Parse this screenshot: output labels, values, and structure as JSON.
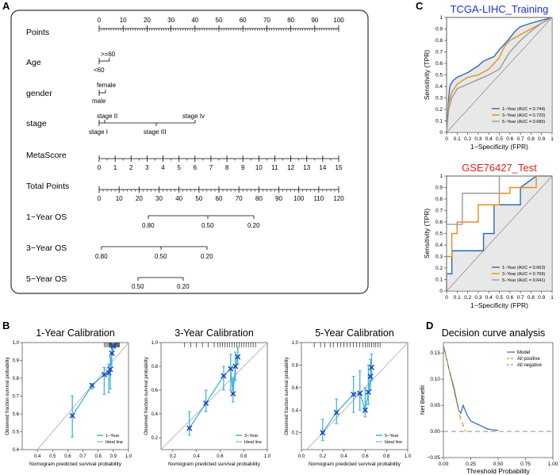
{
  "panels": {
    "A": "A",
    "B": "B",
    "C": "C",
    "D": "D"
  },
  "colors": {
    "blue": "#2a6ab8",
    "orange": "#e0901e",
    "gray": "#9a9a9a",
    "cyan": "#3fb2d8",
    "cross": "#1f3fbf",
    "title_blue": "#1a2ee0",
    "title_red": "#e02020"
  },
  "nomogram": {
    "points": {
      "label": "Points",
      "ticks": [
        "0",
        "10",
        "20",
        "30",
        "40",
        "50",
        "60",
        "70",
        "80",
        "90",
        "100"
      ]
    },
    "age": {
      "label": "Age",
      "upper": ">=60",
      "lower": "<60"
    },
    "gender": {
      "label": "gender",
      "upper": "female",
      "lower": "male"
    },
    "stage": {
      "label": "stage",
      "stage_ii": "stage II",
      "stage_iv": "stage Iv",
      "stage_i": "stage I",
      "stage_iii": "stage III"
    },
    "metascore": {
      "label": "MetaScore",
      "ticks": [
        "0",
        "1",
        "2",
        "3",
        "4",
        "5",
        "6",
        "7",
        "8",
        "9",
        "10",
        "11",
        "12",
        "13",
        "14",
        "15"
      ]
    },
    "total_points": {
      "label": "Total Points",
      "ticks": [
        "0",
        "10",
        "20",
        "30",
        "40",
        "50",
        "60",
        "70",
        "80",
        "90",
        "100",
        "110",
        "120"
      ]
    },
    "os1": {
      "label": "1−Year OS",
      "ticks": [
        "0.80",
        "0.50",
        "0.20"
      ]
    },
    "os3": {
      "label": "3−Year OS",
      "ticks": [
        "0.80",
        "0.50",
        "0.20"
      ]
    },
    "os5": {
      "label": "5−Year OS",
      "ticks": [
        "0.50",
        "0.20"
      ]
    }
  },
  "chart_data": [
    {
      "id": "roc_training",
      "type": "line",
      "title": "TCGA-LIHC_Training",
      "xlabel": "1−Specificity (FPR)",
      "ylabel": "Sensitivity (TPR)",
      "xlim": [
        0,
        1
      ],
      "ylim": [
        0,
        1
      ],
      "ticks": [
        "0",
        "0.1",
        "0.2",
        "0.3",
        "0.4",
        "0.5",
        "0.6",
        "0.7",
        "0.8",
        "0.9",
        "1"
      ],
      "tick_values": [
        0,
        0.1,
        0.2,
        0.3,
        0.4,
        0.5,
        0.6,
        0.7,
        0.8,
        0.9,
        1
      ],
      "series": [
        {
          "name": "1−Year (AUC = 0.744)",
          "color": "#2a6ab8",
          "x": [
            0,
            0.02,
            0.03,
            0.06,
            0.1,
            0.15,
            0.2,
            0.25,
            0.3,
            0.35,
            0.45,
            0.5,
            0.58,
            0.65,
            0.7,
            0.8,
            0.88,
            1
          ],
          "y": [
            0,
            0.3,
            0.4,
            0.45,
            0.48,
            0.5,
            0.52,
            0.55,
            0.58,
            0.62,
            0.66,
            0.72,
            0.8,
            0.88,
            0.92,
            0.95,
            0.97,
            1
          ]
        },
        {
          "name": "3−Year (AUC = 0.720)",
          "color": "#e0901e",
          "x": [
            0,
            0.02,
            0.05,
            0.1,
            0.2,
            0.3,
            0.4,
            0.5,
            0.55,
            0.6,
            0.7,
            0.8,
            0.9,
            1
          ],
          "y": [
            0,
            0.25,
            0.35,
            0.42,
            0.48,
            0.5,
            0.55,
            0.65,
            0.75,
            0.8,
            0.85,
            0.9,
            0.95,
            1
          ]
        },
        {
          "name": "5−Year (AUC = 0.680)",
          "color": "#9a9a9a",
          "x": [
            0,
            0.02,
            0.05,
            0.1,
            0.2,
            0.3,
            0.4,
            0.5,
            0.6,
            0.7,
            0.8,
            0.9,
            1
          ],
          "y": [
            0,
            0.2,
            0.3,
            0.38,
            0.42,
            0.46,
            0.5,
            0.55,
            0.7,
            0.8,
            0.88,
            0.95,
            1
          ]
        }
      ]
    },
    {
      "id": "roc_test",
      "type": "line",
      "title": "GSE76427_Test",
      "xlabel": "1−Specificity (FPR)",
      "ylabel": "Sensitivity (TPR)",
      "xlim": [
        0,
        1
      ],
      "ylim": [
        0,
        1
      ],
      "ticks": [
        "0",
        "0.1",
        "0.2",
        "0.3",
        "0.4",
        "0.5",
        "0.6",
        "0.7",
        "0.8",
        "0.9",
        "1"
      ],
      "tick_values": [
        0,
        0.1,
        0.2,
        0.3,
        0.4,
        0.5,
        0.6,
        0.7,
        0.8,
        0.9,
        1
      ],
      "series": [
        {
          "name": "1−Year (AUC = 0.663)",
          "color": "#2a6ab8",
          "x": [
            0,
            0,
            0.05,
            0.05,
            0.35,
            0.35,
            0.45,
            0.45,
            0.7,
            0.7,
            0.85,
            1
          ],
          "y": [
            0,
            0.15,
            0.15,
            0.35,
            0.35,
            0.5,
            0.5,
            0.75,
            0.75,
            0.9,
            1,
            1
          ]
        },
        {
          "name": "3−Year (AUC = 0.769)",
          "color": "#e0901e",
          "x": [
            0,
            0,
            0.05,
            0.05,
            0.1,
            0.1,
            0.3,
            0.3,
            0.5,
            0.5,
            0.6,
            0.6,
            0.85,
            0.85,
            1
          ],
          "y": [
            0,
            0.3,
            0.3,
            0.5,
            0.5,
            0.6,
            0.6,
            0.75,
            0.75,
            0.85,
            0.85,
            0.9,
            0.9,
            1,
            1
          ]
        },
        {
          "name": "5−Year (AUC = 0.641)",
          "color": "#9a9a9a",
          "x": [
            0,
            0,
            0.15,
            0.15,
            0.35,
            0.35,
            0.5,
            0.5,
            0.85,
            0.85,
            1
          ],
          "y": [
            0,
            0.58,
            0.58,
            0.85,
            0.85,
            0.85,
            0.85,
            1,
            1,
            1,
            1
          ]
        }
      ]
    },
    {
      "id": "cal_1y",
      "type": "line",
      "title": "1-Year Calibration",
      "xlabel": "Nomogram predicted survival probability",
      "ylabel": "Observed fraction survival probability",
      "xlim": [
        0.3,
        1.0
      ],
      "ylim": [
        0.4,
        1.0
      ],
      "xticks": [
        0.4,
        0.5,
        0.6,
        0.7,
        0.8,
        0.9,
        1.0
      ],
      "xtick_labels": [
        "0.4",
        "0.5",
        "0.6",
        "0.7",
        "0.8",
        "0.9",
        "1.0"
      ],
      "yticks": [
        0.4,
        0.5,
        0.6,
        0.7,
        0.8,
        0.9,
        1.0
      ],
      "ytick_labels": [
        "0.4",
        "0.5",
        "0.6",
        "0.7",
        "0.8",
        "0.9",
        "1.0"
      ],
      "legend": [
        "1−Year",
        "Ideal line"
      ],
      "x": [
        0.63,
        0.76,
        0.84,
        0.87,
        0.88,
        0.89,
        0.9
      ],
      "y": [
        0.59,
        0.76,
        0.82,
        0.83,
        0.85,
        0.94,
        0.98
      ],
      "err_low": [
        0.47,
        0.74,
        0.71,
        0.72,
        0.74,
        0.86,
        0.93
      ],
      "err_high": [
        0.7,
        0.77,
        0.86,
        0.88,
        0.92,
        0.97,
        1.0
      ],
      "rug": [
        0.84,
        0.85,
        0.86,
        0.87,
        0.875,
        0.88,
        0.885,
        0.89,
        0.895,
        0.9,
        0.905,
        0.91,
        0.915,
        0.92,
        0.925,
        0.93,
        0.935,
        0.94
      ]
    },
    {
      "id": "cal_3y",
      "type": "line",
      "title": "3-Year Calibration",
      "xlabel": "Nomogram predicted survival probability",
      "ylabel": "Observed fraction survival probability",
      "xlim": [
        0.1,
        1.0
      ],
      "ylim": [
        0.1,
        1.0
      ],
      "xticks": [
        0.2,
        0.4,
        0.6,
        0.8,
        1.0
      ],
      "xtick_labels": [
        "0.2",
        "0.4",
        "0.6",
        "0.8",
        "1.0"
      ],
      "yticks": [
        0.2,
        0.4,
        0.6,
        0.8,
        1.0
      ],
      "ytick_labels": [
        "0.2",
        "0.4",
        "0.6",
        "0.8",
        "1.0"
      ],
      "legend": [
        "3−Year",
        "Ideal line"
      ],
      "x": [
        0.34,
        0.48,
        0.63,
        0.69,
        0.71,
        0.73,
        0.75
      ],
      "y": [
        0.28,
        0.49,
        0.72,
        0.78,
        0.57,
        0.8,
        0.88
      ],
      "err_low": [
        0.22,
        0.42,
        0.6,
        0.6,
        0.5,
        0.68,
        0.82
      ],
      "err_high": [
        0.42,
        0.6,
        0.8,
        0.9,
        0.7,
        0.92,
        0.96
      ],
      "rug": [
        0.3,
        0.35,
        0.4,
        0.45,
        0.5,
        0.55,
        0.58,
        0.6,
        0.62,
        0.64,
        0.66,
        0.68,
        0.7,
        0.72,
        0.74,
        0.76,
        0.78,
        0.8,
        0.82,
        0.84,
        0.86,
        0.88,
        0.9
      ]
    },
    {
      "id": "cal_5y",
      "type": "line",
      "title": "5-Year Calibration",
      "xlabel": "Nomogram predicted survival probability",
      "ylabel": "Observed fraction survival probability",
      "xlim": [
        0.0,
        1.0
      ],
      "ylim": [
        0.05,
        1.0
      ],
      "xticks": [
        0.0,
        0.2,
        0.4,
        0.6,
        0.8,
        1.0
      ],
      "xtick_labels": [
        "0.0",
        "0.2",
        "0.4",
        "0.6",
        "0.8",
        "1.0"
      ],
      "yticks": [
        0.2,
        0.4,
        0.6,
        0.8,
        1.0
      ],
      "ytick_labels": [
        "0.2",
        "0.4",
        "0.6",
        "0.8",
        "1.0"
      ],
      "legend": [
        "5−Year",
        "Ideal line"
      ],
      "x": [
        0.2,
        0.33,
        0.49,
        0.55,
        0.6,
        0.63,
        0.65,
        0.66
      ],
      "y": [
        0.2,
        0.38,
        0.54,
        0.55,
        0.4,
        0.56,
        0.7,
        0.78
      ],
      "err_low": [
        0.13,
        0.28,
        0.38,
        0.4,
        0.34,
        0.45,
        0.58,
        0.66
      ],
      "err_high": [
        0.32,
        0.5,
        0.7,
        0.75,
        0.6,
        0.8,
        0.85,
        0.9
      ],
      "rug": [
        0.12,
        0.18,
        0.22,
        0.27,
        0.3,
        0.34,
        0.37,
        0.4,
        0.43,
        0.46,
        0.49,
        0.52,
        0.55,
        0.58,
        0.6,
        0.62,
        0.64,
        0.66,
        0.68,
        0.7,
        0.72,
        0.74
      ]
    },
    {
      "id": "dca",
      "type": "line",
      "title": "Decision curve analysis",
      "xlabel": "Threshold Probability",
      "ylabel": "Net Benefit",
      "xlim": [
        0,
        1
      ],
      "ylim": [
        -0.05,
        0.17
      ],
      "xticks": [
        0,
        0.25,
        0.5,
        0.75,
        1.0
      ],
      "xtick_labels": [
        "0.00",
        "0.25",
        "0.50",
        "0.75",
        "1.00"
      ],
      "yticks": [
        -0.05,
        0,
        0.05,
        0.1,
        0.15
      ],
      "ytick_labels": [
        "−0.05",
        "0.00",
        "0.05",
        "0.10",
        "0.15"
      ],
      "series": [
        {
          "name": "Model",
          "color": "#2a6ab8",
          "dash": "",
          "x": [
            0,
            0.05,
            0.1,
            0.12,
            0.14,
            0.16,
            0.18,
            0.2,
            0.22,
            0.25,
            0.3,
            0.35,
            0.4,
            0.45,
            0.5
          ],
          "y": [
            0.165,
            0.12,
            0.08,
            0.06,
            0.04,
            0.035,
            0.05,
            0.04,
            0.03,
            0.02,
            0.015,
            0.01,
            0.005,
            0.003,
            0.002
          ]
        },
        {
          "name": "All positive",
          "color": "#e0901e",
          "dash": "6,4",
          "x": [
            0,
            0.05,
            0.1,
            0.15,
            0.2
          ],
          "y": [
            0.165,
            0.12,
            0.075,
            0.03,
            0.0
          ]
        },
        {
          "name": "All negative",
          "color": "#9a9a9a",
          "dash": "6,4",
          "x": [
            0,
            1
          ],
          "y": [
            0,
            0
          ]
        }
      ]
    }
  ]
}
